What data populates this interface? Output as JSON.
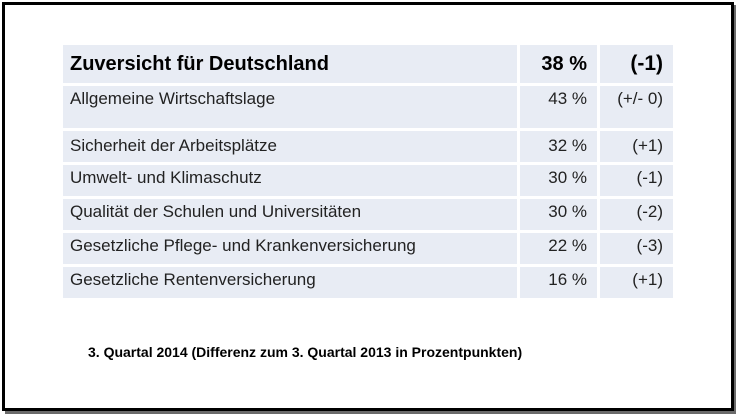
{
  "chart_data": {
    "type": "table",
    "header": {
      "label": "Zuversicht für Deutschland",
      "value": "38 %",
      "diff": "(-1)"
    },
    "rows": [
      {
        "label": "Allgemeine Wirtschaftslage",
        "value": "43 %",
        "diff": "(+/- 0)"
      },
      {
        "label": "Sicherheit der Arbeitsplätze",
        "value": "32 %",
        "diff": "(+1)"
      },
      {
        "label": "Umwelt- und Klimaschutz",
        "value": "30 %",
        "diff": "(-1)"
      },
      {
        "label": "Qualität der Schulen und Universitäten",
        "value": "30 %",
        "diff": "(-2)"
      },
      {
        "label": "Gesetzliche Pflege- und Krankenversicherung",
        "value": "22 %",
        "diff": "(-3)"
      },
      {
        "label": "Gesetzliche Rentenversicherung",
        "value": "16 %",
        "diff": "(+1)"
      }
    ],
    "footnote": "3. Quartal 2014 (Differenz zum 3. Quartal 2013 in Prozentpunkten)"
  }
}
